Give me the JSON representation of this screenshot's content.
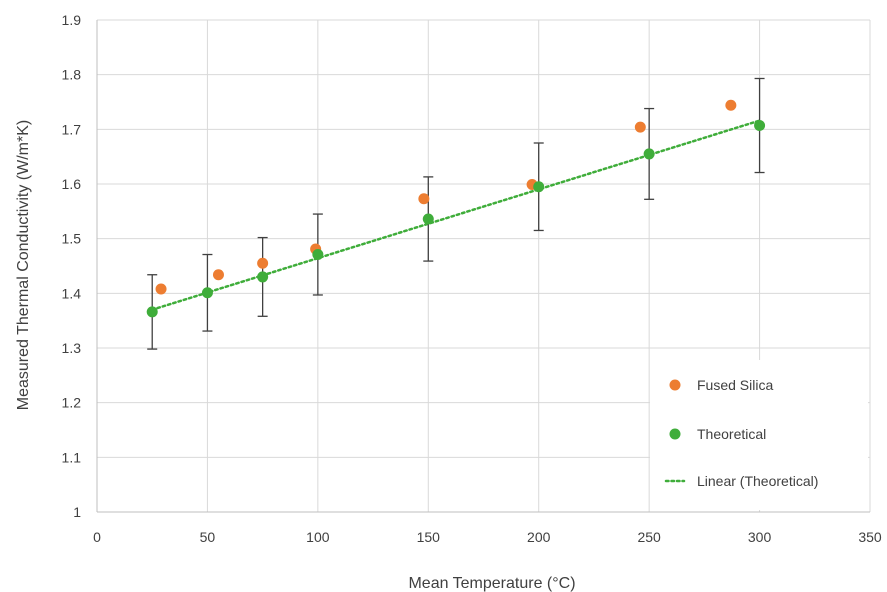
{
  "chart_data": {
    "type": "scatter",
    "title": "",
    "xlabel": "Mean Temperature (°C)",
    "ylabel": "Measured Thermal Conductivity (W/m*K)",
    "xlim": [
      0,
      350
    ],
    "ylim": [
      1,
      1.9
    ],
    "x_ticks": [
      "0",
      "50",
      "100",
      "150",
      "200",
      "250",
      "300",
      "350"
    ],
    "y_ticks": [
      "1",
      "1.1",
      "1.2",
      "1.3",
      "1.4",
      "1.5",
      "1.6",
      "1.7",
      "1.8",
      "1.9"
    ],
    "grid": true,
    "legend_position": "bottom-right",
    "series": [
      {
        "name": "Fused Silica",
        "color": "#ED7D31",
        "x": [
          29,
          55,
          75,
          99,
          148,
          197,
          246,
          287
        ],
        "y": [
          1.408,
          1.434,
          1.455,
          1.481,
          1.573,
          1.599,
          1.704,
          1.744
        ]
      },
      {
        "name": "Theoretical",
        "color": "#3FAD3A",
        "x": [
          25,
          50,
          75,
          100,
          150,
          200,
          250,
          300
        ],
        "y": [
          1.366,
          1.401,
          1.43,
          1.471,
          1.536,
          1.595,
          1.655,
          1.707
        ],
        "error": [
          0.068,
          0.07,
          0.072,
          0.074,
          0.077,
          0.08,
          0.083,
          0.086
        ]
      }
    ],
    "trendline": {
      "name": "Linear (Theoretical)",
      "color": "#3FAD3A",
      "x": [
        25,
        300
      ],
      "y": [
        1.37,
        1.716
      ]
    }
  }
}
